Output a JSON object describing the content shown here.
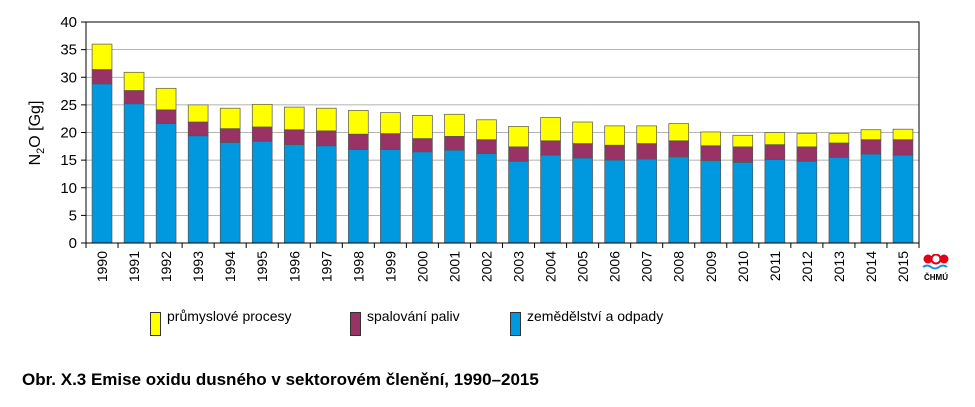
{
  "chart_data": {
    "type": "bar",
    "stacked": true,
    "ylabel_main": "N",
    "ylabel_sub": "2",
    "ylabel_rest": "O [Gg]",
    "ylim": [
      0,
      40
    ],
    "yticks": [
      0,
      5,
      10,
      15,
      20,
      25,
      30,
      35,
      40
    ],
    "grid": true,
    "legend_placement": "bottom",
    "categories": [
      "1990",
      "1991",
      "1992",
      "1993",
      "1994",
      "1995",
      "1996",
      "1997",
      "1998",
      "1999",
      "2000",
      "2001",
      "2002",
      "2003",
      "2004",
      "2005",
      "2006",
      "2007",
      "2008",
      "2009",
      "2010",
      "2011",
      "2012",
      "2013",
      "2014",
      "2015"
    ],
    "series": [
      {
        "name": "zemědělství a odpady",
        "color": "#0099e0",
        "values": [
          28.8,
          25.2,
          21.6,
          19.4,
          18.2,
          18.4,
          17.8,
          17.6,
          16.9,
          16.9,
          16.5,
          16.8,
          16.2,
          14.8,
          15.9,
          15.4,
          15.0,
          15.2,
          15.6,
          14.9,
          14.6,
          15.1,
          14.8,
          15.5,
          16.1,
          15.9
        ]
      },
      {
        "name": "spalování paliv",
        "color": "#993366",
        "values": [
          2.6,
          2.4,
          2.5,
          2.5,
          2.5,
          2.6,
          2.7,
          2.7,
          2.8,
          2.9,
          2.4,
          2.5,
          2.5,
          2.6,
          2.6,
          2.6,
          2.7,
          2.8,
          2.9,
          2.7,
          2.8,
          2.7,
          2.6,
          2.6,
          2.6,
          2.8
        ]
      },
      {
        "name": "průmyslové procesy",
        "color": "#ffff00",
        "values": [
          4.6,
          3.3,
          3.9,
          3.1,
          3.7,
          4.1,
          4.1,
          4.1,
          4.3,
          3.8,
          4.2,
          4.0,
          3.6,
          3.7,
          4.2,
          3.9,
          3.5,
          3.2,
          3.1,
          2.5,
          2.1,
          2.2,
          2.4,
          1.7,
          1.8,
          1.9
        ]
      }
    ]
  },
  "legend": [
    {
      "label": "průmyslové procesy",
      "color": "#ffff00"
    },
    {
      "label": "spalování paliv",
      "color": "#993366"
    },
    {
      "label": "zemědělství a odpady",
      "color": "#0099e0"
    }
  ],
  "caption": "Obr. X.3  Emise oxidu dusného v sektorovém členění, 1990–2015",
  "logo": {
    "text": "ČHMÚ",
    "colors": [
      "#e0001a",
      "#1a8fd8"
    ]
  }
}
